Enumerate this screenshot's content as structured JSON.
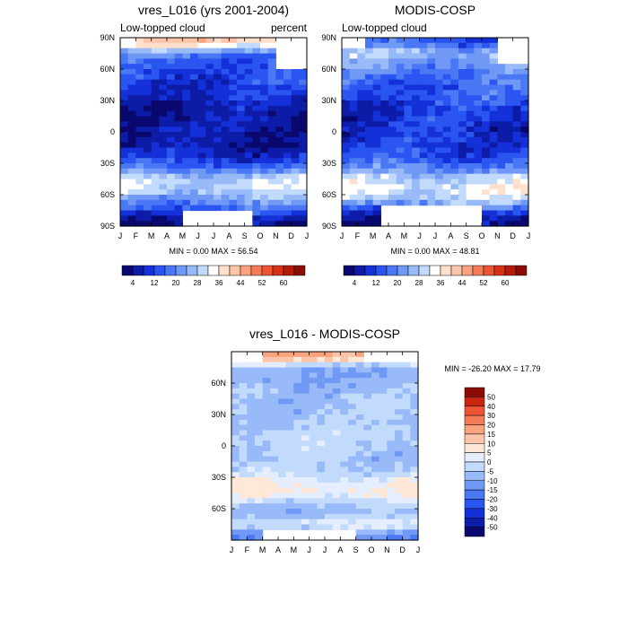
{
  "chart_data": [
    {
      "type": "heatmap",
      "title": "vres_L016 (yrs 2001-2004)",
      "subtitle_left": "Low-topped cloud",
      "subtitle_right": "percent",
      "x_tick_labels": [
        "J",
        "F",
        "M",
        "A",
        "M",
        "J",
        "J",
        "A",
        "S",
        "O",
        "N",
        "D",
        "J"
      ],
      "y_tick_labels": [
        "90N",
        "60N",
        "30N",
        "0",
        "30S",
        "60S",
        "90S"
      ],
      "ylim": [
        -90,
        90
      ],
      "min_max_label": "MIN =   0.00 MAX =  56.54",
      "min": 0.0,
      "max": 56.54,
      "colorbar_labels": [
        "4",
        "12",
        "20",
        "28",
        "36",
        "44",
        "52",
        "60"
      ],
      "lat_profile": [
        {
          "lat": 85,
          "value": 40
        },
        {
          "lat": 75,
          "value": 20
        },
        {
          "lat": 65,
          "value": 14
        },
        {
          "lat": 50,
          "value": 12
        },
        {
          "lat": 35,
          "value": 9
        },
        {
          "lat": 20,
          "value": 6
        },
        {
          "lat": 5,
          "value": 5
        },
        {
          "lat": -10,
          "value": 5
        },
        {
          "lat": -25,
          "value": 10
        },
        {
          "lat": -35,
          "value": 18
        },
        {
          "lat": -45,
          "value": 30
        },
        {
          "lat": -55,
          "value": 30
        },
        {
          "lat": -65,
          "value": 22
        },
        {
          "lat": -75,
          "value": 14
        },
        {
          "lat": -85,
          "value": 4
        }
      ]
    },
    {
      "type": "heatmap",
      "title": "MODIS-COSP",
      "subtitle_left": "Low-topped cloud",
      "x_tick_labels": [
        "J",
        "F",
        "M",
        "A",
        "M",
        "J",
        "J",
        "A",
        "S",
        "O",
        "N",
        "D",
        "J"
      ],
      "y_tick_labels": [
        "90N",
        "60N",
        "30N",
        "0",
        "30S",
        "60S",
        "90S"
      ],
      "ylim": [
        -90,
        90
      ],
      "min_max_label": "MIN =   0.00 MAX =  48.81",
      "min": 0.0,
      "max": 48.81,
      "colorbar_labels": [
        "4",
        "12",
        "20",
        "28",
        "36",
        "44",
        "52",
        "60"
      ],
      "lat_profile": [
        {
          "lat": 85,
          "value": 14
        },
        {
          "lat": 75,
          "value": 28
        },
        {
          "lat": 65,
          "value": 22
        },
        {
          "lat": 50,
          "value": 16
        },
        {
          "lat": 35,
          "value": 14
        },
        {
          "lat": 20,
          "value": 11
        },
        {
          "lat": 5,
          "value": 9
        },
        {
          "lat": -10,
          "value": 10
        },
        {
          "lat": -25,
          "value": 14
        },
        {
          "lat": -35,
          "value": 20
        },
        {
          "lat": -45,
          "value": 30
        },
        {
          "lat": -55,
          "value": 34
        },
        {
          "lat": -65,
          "value": 28
        },
        {
          "lat": -75,
          "value": 12
        },
        {
          "lat": -85,
          "value": 4
        }
      ]
    },
    {
      "type": "heatmap",
      "title": "vres_L016 - MODIS-COSP",
      "x_tick_labels": [
        "J",
        "F",
        "M",
        "A",
        "M",
        "J",
        "J",
        "A",
        "S",
        "O",
        "N",
        "D",
        "J"
      ],
      "y_tick_labels": [
        "60N",
        "30N",
        "0",
        "30S",
        "60S"
      ],
      "y_tick_lats": [
        60,
        30,
        0,
        -30,
        -60
      ],
      "ylim": [
        -90,
        90
      ],
      "min_max_label": "MIN = -26.20 MAX =  17.79",
      "min": -26.2,
      "max": 17.79,
      "colorbar_labels": [
        "50",
        "40",
        "30",
        "20",
        "15",
        "10",
        "5",
        "0",
        "-5",
        "-10",
        "-15",
        "-20",
        "-30",
        "-40",
        "-50"
      ],
      "lat_profile": [
        {
          "lat": 85,
          "value": 16
        },
        {
          "lat": 75,
          "value": -8
        },
        {
          "lat": 65,
          "value": -10
        },
        {
          "lat": 50,
          "value": -6
        },
        {
          "lat": 35,
          "value": -6
        },
        {
          "lat": 20,
          "value": -5
        },
        {
          "lat": 5,
          "value": -3
        },
        {
          "lat": -10,
          "value": -6
        },
        {
          "lat": -25,
          "value": -3
        },
        {
          "lat": -35,
          "value": 4
        },
        {
          "lat": -45,
          "value": 6
        },
        {
          "lat": -55,
          "value": -4
        },
        {
          "lat": -65,
          "value": -8
        },
        {
          "lat": -75,
          "value": 2
        },
        {
          "lat": -85,
          "value": -14
        }
      ]
    }
  ],
  "colors": {
    "sequential": [
      "#08086e",
      "#0c1ca6",
      "#1430d8",
      "#2a55f0",
      "#4a78f5",
      "#7098f5",
      "#99baf8",
      "#c2dafc",
      "#ffffff",
      "#ffe0cc",
      "#fcc4a8",
      "#f8a27e",
      "#f47d58",
      "#ee5434",
      "#d93018",
      "#b31a0a",
      "#8a0c02"
    ],
    "diverging": [
      "#08086e",
      "#0c1ca6",
      "#1430d8",
      "#2a55f0",
      "#4a78f5",
      "#7098f5",
      "#99baf8",
      "#c2dafc",
      "#e4eefe",
      "#ffe8d8",
      "#fcc4a8",
      "#f8a27e",
      "#f47d58",
      "#ee5434",
      "#c82410",
      "#8a0c02"
    ]
  }
}
